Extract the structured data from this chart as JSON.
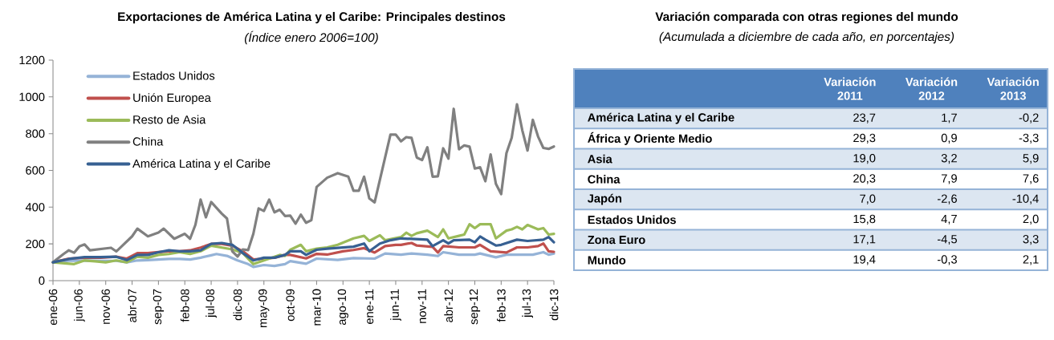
{
  "chart_data": [
    {
      "type": "line",
      "title": "Exportaciones de América Latina y el Caribe: Principales destinos",
      "subtitle": "(Índice enero 2006=100)",
      "xlim": [
        "2006-01",
        "2013-12"
      ],
      "xticks": [
        {
          "value": "2006-01",
          "label": "ene-06"
        },
        {
          "value": "2006-06",
          "label": "jun-06"
        },
        {
          "value": "2006-11",
          "label": "nov-06"
        },
        {
          "value": "2007-04",
          "label": "abr-07"
        },
        {
          "value": "2007-09",
          "label": "sep-07"
        },
        {
          "value": "2008-02",
          "label": "feb-08"
        },
        {
          "value": "2008-07",
          "label": "jul-08"
        },
        {
          "value": "2008-12",
          "label": "dic-08"
        },
        {
          "value": "2009-05",
          "label": "may-09"
        },
        {
          "value": "2009-10",
          "label": "oct-09"
        },
        {
          "value": "2010-03",
          "label": "mar-10"
        },
        {
          "value": "2010-08",
          "label": "ago-10"
        },
        {
          "value": "2011-01",
          "label": "ene-11"
        },
        {
          "value": "2011-06",
          "label": "jun-11"
        },
        {
          "value": "2011-11",
          "label": "nov-11"
        },
        {
          "value": "2012-04",
          "label": "abr-12"
        },
        {
          "value": "2012-09",
          "label": "sep-12"
        },
        {
          "value": "2013-02",
          "label": "feb-13"
        },
        {
          "value": "2013-07",
          "label": "jul-13"
        },
        {
          "value": "2013-12",
          "label": "dic-13"
        }
      ],
      "ylim": [
        0,
        1200
      ],
      "yticks": [
        0,
        200,
        400,
        600,
        800,
        1000,
        1200
      ],
      "legend": "top left",
      "series": [
        {
          "name": "Estados Unidos",
          "color": "#95b3d7",
          "x": [
            "2006-01",
            "2006-04",
            "2006-07",
            "2006-10",
            "2007-01",
            "2007-03",
            "2007-05",
            "2007-07",
            "2007-09",
            "2007-11",
            "2008-01",
            "2008-03",
            "2008-05",
            "2008-07",
            "2008-08",
            "2008-10",
            "2008-12",
            "2009-02",
            "2009-03",
            "2009-05",
            "2009-07",
            "2009-09",
            "2009-10",
            "2010-01",
            "2010-03",
            "2010-07",
            "2010-10",
            "2011-02",
            "2011-04",
            "2011-07",
            "2011-09",
            "2011-12",
            "2012-02",
            "2012-03",
            "2012-06",
            "2012-09",
            "2012-10",
            "2013-01",
            "2013-03",
            "2013-06",
            "2013-08",
            "2013-10",
            "2013-11",
            "2013-12"
          ],
          "values": [
            100,
            108,
            110,
            108,
            108,
            100,
            110,
            112,
            115,
            118,
            118,
            115,
            125,
            138,
            145,
            135,
            110,
            90,
            75,
            85,
            80,
            90,
            106,
            92,
            120,
            113,
            123,
            120,
            148,
            141,
            148,
            141,
            134,
            155,
            141,
            141,
            148,
            127,
            141,
            141,
            141,
            155,
            141,
            148
          ]
        },
        {
          "name": "Unión Europea",
          "color": "#c0504d",
          "x": [
            "2006-01",
            "2006-04",
            "2006-07",
            "2006-10",
            "2007-01",
            "2007-03",
            "2007-05",
            "2007-07",
            "2007-09",
            "2007-11",
            "2008-01",
            "2008-03",
            "2008-05",
            "2008-07",
            "2008-09",
            "2008-11",
            "2009-01",
            "2009-03",
            "2009-05",
            "2009-07",
            "2009-09",
            "2009-10",
            "2010-01",
            "2010-03",
            "2010-05",
            "2010-08",
            "2010-10",
            "2010-12",
            "2011-02",
            "2011-04",
            "2011-06",
            "2011-07",
            "2011-09",
            "2011-10",
            "2012-01",
            "2012-02",
            "2012-03",
            "2012-06",
            "2012-09",
            "2012-10",
            "2012-12",
            "2013-03",
            "2013-05",
            "2013-07",
            "2013-09",
            "2013-10",
            "2013-11",
            "2013-12"
          ],
          "values": [
            100,
            120,
            125,
            125,
            130,
            120,
            150,
            150,
            155,
            160,
            160,
            165,
            180,
            200,
            200,
            190,
            160,
            115,
            120,
            125,
            140,
            140,
            121,
            146,
            142,
            160,
            167,
            177,
            153,
            188,
            195,
            195,
            205,
            191,
            184,
            153,
            188,
            181,
            181,
            195,
            160,
            153,
            181,
            181,
            188,
            202,
            160,
            157
          ]
        },
        {
          "name": "Resto de Asia",
          "color": "#9bbb59",
          "x": [
            "2006-01",
            "2006-03",
            "2006-05",
            "2006-07",
            "2006-09",
            "2006-11",
            "2007-01",
            "2007-03",
            "2007-05",
            "2007-07",
            "2007-09",
            "2007-11",
            "2008-01",
            "2008-03",
            "2008-05",
            "2008-07",
            "2008-09",
            "2008-11",
            "2009-01",
            "2009-03",
            "2009-05",
            "2009-07",
            "2009-08",
            "2009-09",
            "2009-10",
            "2009-12",
            "2010-01",
            "2010-03",
            "2010-05",
            "2010-07",
            "2010-10",
            "2010-12",
            "2011-01",
            "2011-03",
            "2011-04",
            "2011-07",
            "2011-08",
            "2011-09",
            "2011-10",
            "2011-12",
            "2012-02",
            "2012-03",
            "2012-04",
            "2012-06",
            "2012-07",
            "2012-08",
            "2012-09",
            "2012-10",
            "2012-12",
            "2013-01",
            "2013-03",
            "2013-04",
            "2013-05",
            "2013-06",
            "2013-07",
            "2013-09",
            "2013-10",
            "2013-11",
            "2013-12"
          ],
          "values": [
            100,
            95,
            90,
            110,
            105,
            100,
            110,
            100,
            130,
            125,
            140,
            145,
            155,
            145,
            160,
            190,
            180,
            170,
            150,
            90,
            110,
            130,
            140,
            135,
            168,
            195,
            160,
            174,
            181,
            195,
            230,
            244,
            216,
            247,
            220,
            237,
            261,
            244,
            258,
            272,
            237,
            279,
            230,
            244,
            251,
            307,
            286,
            307,
            307,
            230,
            272,
            279,
            293,
            279,
            303,
            279,
            286,
            251,
            255
          ]
        },
        {
          "name": "China",
          "color": "#808080",
          "x": [
            "2006-01",
            "2006-03",
            "2006-04",
            "2006-05",
            "2006-06",
            "2006-07",
            "2006-08",
            "2006-10",
            "2006-12",
            "2007-01",
            "2007-02",
            "2007-04",
            "2007-05",
            "2007-07",
            "2007-09",
            "2007-10",
            "2007-12",
            "2008-02",
            "2008-03",
            "2008-04",
            "2008-05",
            "2008-06",
            "2008-07",
            "2008-09",
            "2008-10",
            "2008-11",
            "2008-12",
            "2009-01",
            "2009-02",
            "2009-03",
            "2009-04",
            "2009-05",
            "2009-06",
            "2009-07",
            "2009-08",
            "2009-09",
            "2009-10",
            "2009-11",
            "2009-12",
            "2010-01",
            "2010-02",
            "2010-03",
            "2010-05",
            "2010-07",
            "2010-09",
            "2010-10",
            "2010-11",
            "2010-12",
            "2011-01",
            "2011-02",
            "2011-05",
            "2011-06",
            "2011-07",
            "2011-08",
            "2011-09",
            "2011-10",
            "2011-11",
            "2011-12",
            "2012-01",
            "2012-02",
            "2012-03",
            "2012-04",
            "2012-05",
            "2012-06",
            "2012-07",
            "2012-08",
            "2012-09",
            "2012-10",
            "2012-11",
            "2012-12",
            "2013-01",
            "2013-02",
            "2013-03",
            "2013-04",
            "2013-05",
            "2013-06",
            "2013-07",
            "2013-08",
            "2013-09",
            "2013-10",
            "2013-11",
            "2013-12"
          ],
          "values": [
            100,
            145,
            165,
            152,
            186,
            197,
            165,
            172,
            179,
            159,
            186,
            241,
            283,
            241,
            262,
            283,
            228,
            255,
            228,
            303,
            441,
            345,
            428,
            365,
            338,
            160,
            131,
            170,
            166,
            255,
            393,
            379,
            441,
            372,
            386,
            352,
            354,
            310,
            359,
            315,
            329,
            510,
            560,
            585,
            566,
            489,
            489,
            566,
            447,
            426,
            795,
            795,
            758,
            781,
            777,
            670,
            656,
            726,
            566,
            568,
            720,
            664,
            935,
            715,
            736,
            729,
            610,
            617,
            541,
            687,
            527,
            471,
            694,
            778,
            960,
            819,
            708,
            875,
            784,
            722,
            717,
            730
          ]
        },
        {
          "name": "América Latina y el Caribe",
          "color": "#376092",
          "x": [
            "2006-01",
            "2006-04",
            "2006-07",
            "2006-10",
            "2007-01",
            "2007-03",
            "2007-05",
            "2007-07",
            "2007-09",
            "2007-11",
            "2008-01",
            "2008-03",
            "2008-05",
            "2008-07",
            "2008-09",
            "2008-11",
            "2009-01",
            "2009-03",
            "2009-05",
            "2009-07",
            "2009-09",
            "2009-10",
            "2009-12",
            "2010-01",
            "2010-03",
            "2010-05",
            "2010-10",
            "2010-12",
            "2011-01",
            "2011-03",
            "2011-05",
            "2011-07",
            "2011-12",
            "2012-01",
            "2012-03",
            "2012-04",
            "2012-05",
            "2012-08",
            "2012-09",
            "2012-10",
            "2012-11",
            "2013-01",
            "2013-02",
            "2013-05",
            "2013-07",
            "2013-10",
            "2013-11",
            "2013-12"
          ],
          "values": [
            100,
            118,
            128,
            128,
            130,
            112,
            140,
            140,
            155,
            165,
            160,
            160,
            165,
            200,
            205,
            195,
            150,
            110,
            125,
            125,
            140,
            160,
            160,
            140,
            168,
            174,
            185,
            202,
            160,
            202,
            220,
            230,
            223,
            188,
            220,
            202,
            220,
            223,
            209,
            240,
            223,
            191,
            195,
            223,
            216,
            223,
            237,
            209
          ]
        }
      ]
    },
    {
      "type": "other",
      "title": "Variación comparada con otras regiones del mundo",
      "subtitle": "(Acumulada a diciembre de cada año, en porcentajes)",
      "categories": [
        "América Latina y el Caribe",
        "África y Oriente Medio",
        "Asia",
        "China",
        "Japón",
        "Estados Unidos",
        "Zona Euro",
        "Mundo"
      ],
      "series": [
        {
          "name": "Variación 2011",
          "values": [
            23.7,
            29.3,
            19.0,
            20.3,
            7.0,
            15.8,
            17.1,
            19.4
          ],
          "value_labels": [
            "23,7",
            "29,3",
            "19,0",
            "20,3",
            "7,0",
            "15,8",
            "17,1",
            "19,4"
          ]
        },
        {
          "name": "Variación 2012",
          "values": [
            1.7,
            0.9,
            3.2,
            7.9,
            -2.6,
            4.7,
            -4.5,
            -0.3
          ],
          "value_labels": [
            "1,7",
            "0,9",
            "3,2",
            "7,9",
            "-2,6",
            "4,7",
            "-4,5",
            "-0,3"
          ]
        },
        {
          "name": "Variación 2013",
          "values": [
            -0.2,
            -3.3,
            5.9,
            7.6,
            -10.4,
            2.0,
            3.3,
            2.1
          ],
          "value_labels": [
            "-0,2",
            "-3,3",
            "5,9",
            "7,6",
            "-10,4",
            "2,0",
            "3,3",
            "2,1"
          ]
        }
      ]
    }
  ]
}
